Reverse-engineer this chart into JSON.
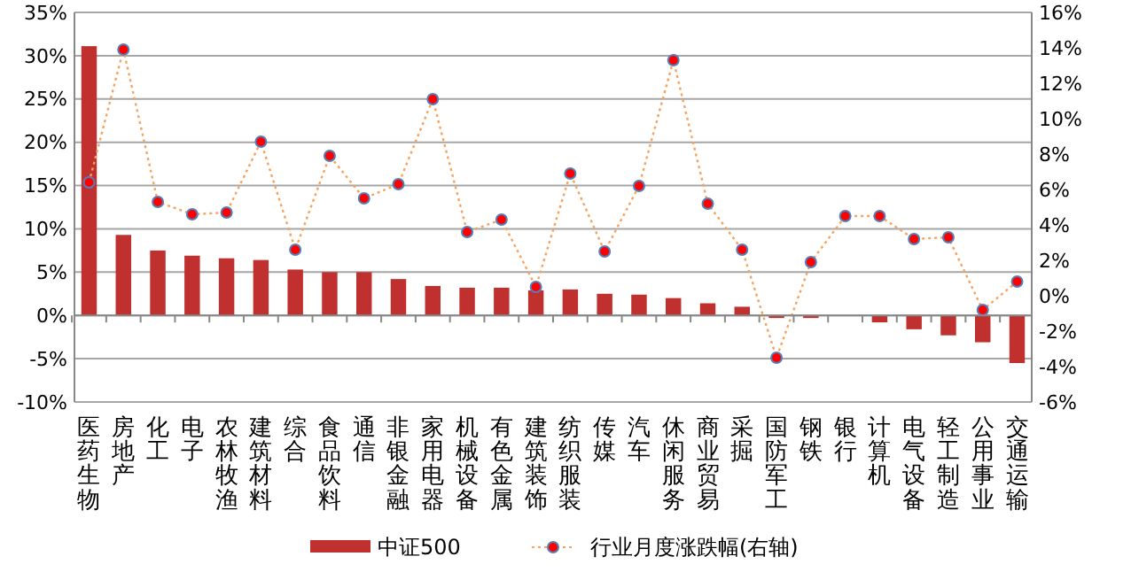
{
  "chart_data": {
    "type": "bar",
    "categories": [
      "医药生物",
      "房地产",
      "化工",
      "电子",
      "农林牧渔",
      "建筑材料",
      "综合",
      "食品饮料",
      "通信",
      "非银金融",
      "家用电器",
      "机械设备",
      "有色金属",
      "建筑装饰",
      "纺织服装",
      "传媒",
      "汽车",
      "休闲服务",
      "商业贸易",
      "采掘",
      "国防军工",
      "钢铁",
      "银行",
      "计算机",
      "电气设备",
      "轻工制造",
      "公用事业",
      "交通运输"
    ],
    "series": [
      {
        "name": "中证500",
        "color": "#c0302e",
        "values": [
          31.1,
          9.3,
          7.5,
          6.9,
          6.6,
          6.4,
          5.3,
          5.0,
          5.0,
          4.2,
          3.4,
          3.2,
          3.2,
          2.9,
          3.0,
          2.5,
          2.4,
          2.0,
          1.4,
          1.0,
          -0.3,
          -0.3,
          null,
          -0.8,
          -1.6,
          -2.3,
          -3.1,
          -5.5
        ]
      },
      {
        "name": "行业月度涨跌幅(右轴)",
        "type": "line",
        "axis": "y2",
        "color": "#f4a460",
        "marker": "circle",
        "line_style": "dotted",
        "values": [
          6.4,
          13.9,
          5.3,
          4.6,
          4.7,
          8.7,
          2.6,
          7.9,
          5.5,
          6.3,
          11.1,
          3.6,
          4.3,
          0.5,
          6.9,
          2.5,
          6.2,
          13.3,
          5.2,
          2.6,
          -3.5,
          1.9,
          4.5,
          4.5,
          3.2,
          3.3,
          -0.8,
          0.8
        ]
      }
    ],
    "ylim": [
      -10,
      35
    ],
    "yticks": [
      {
        "value": -10,
        "label": "-10%"
      },
      {
        "value": -5,
        "label": "-5%"
      },
      {
        "value": 0,
        "label": "0%"
      },
      {
        "value": 5,
        "label": "5%"
      },
      {
        "value": 10,
        "label": "10%"
      },
      {
        "value": 15,
        "label": "15%"
      },
      {
        "value": 20,
        "label": "20%"
      },
      {
        "value": 25,
        "label": "25%"
      },
      {
        "value": 30,
        "label": "30%"
      },
      {
        "value": 35,
        "label": "35%"
      }
    ],
    "y2lim": [
      -6,
      16
    ],
    "y2ticks": [
      {
        "value": -6,
        "label": "-6%"
      },
      {
        "value": -4,
        "label": "-4%"
      },
      {
        "value": -2,
        "label": "-2%"
      },
      {
        "value": 0,
        "label": "0%"
      },
      {
        "value": 2,
        "label": "2%"
      },
      {
        "value": 4,
        "label": "4%"
      },
      {
        "value": 6,
        "label": "6%"
      },
      {
        "value": 8,
        "label": "8%"
      },
      {
        "value": 10,
        "label": "10%"
      },
      {
        "value": 12,
        "label": "12%"
      },
      {
        "value": 14,
        "label": "14%"
      },
      {
        "value": 16,
        "label": "16%"
      }
    ],
    "grid": "y",
    "legend": "bottom"
  }
}
